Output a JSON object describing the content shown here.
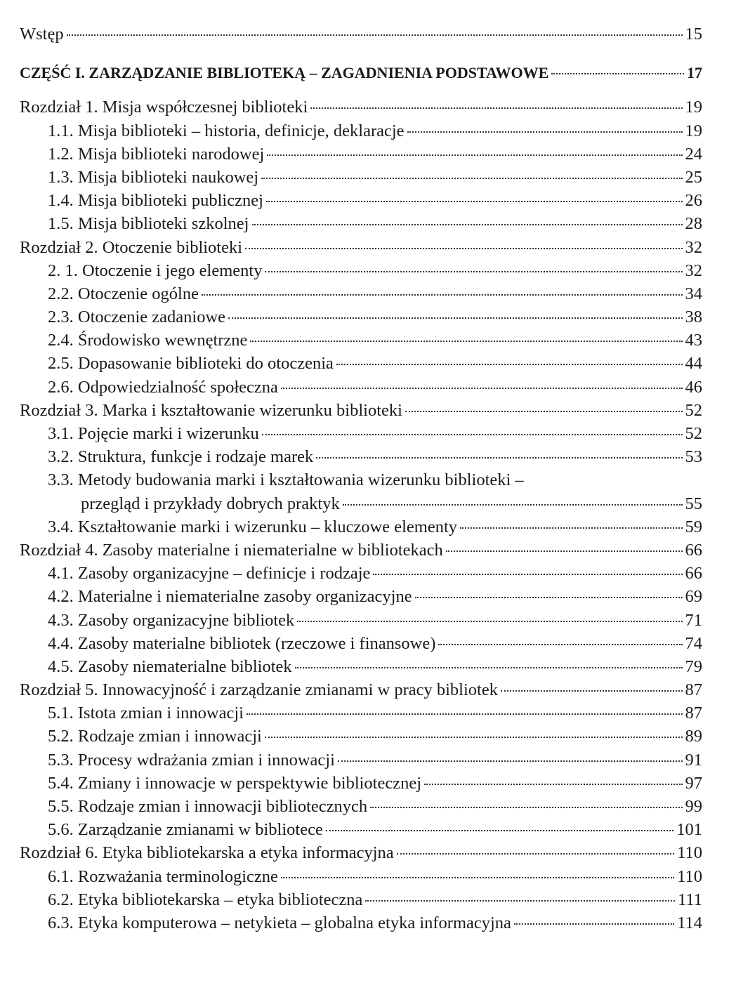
{
  "intro": {
    "title": "Wstęp",
    "page": 15
  },
  "part": {
    "title": "CZĘŚĆ I. ZARZĄDZANIE BIBLIOTEKĄ – ZAGADNIENIA PODSTAWOWE",
    "page": 17
  },
  "chapters": [
    {
      "title": "Rozdział 1. Misja współczesnej biblioteki",
      "page": 19,
      "sections": [
        {
          "title": "1.1. Misja biblioteki – historia, definicje, deklaracje",
          "page": 19
        },
        {
          "title": "1.2. Misja biblioteki narodowej",
          "page": 24
        },
        {
          "title": "1.3. Misja biblioteki naukowej",
          "page": 25
        },
        {
          "title": "1.4. Misja biblioteki publicznej",
          "page": 26
        },
        {
          "title": "1.5. Misja biblioteki szkolnej",
          "page": 28
        }
      ]
    },
    {
      "title": "Rozdział 2. Otoczenie biblioteki",
      "page": 32,
      "sections": [
        {
          "title": "2. 1. Otoczenie i jego elementy",
          "page": 32
        },
        {
          "title": "2.2. Otoczenie ogólne",
          "page": 34
        },
        {
          "title": "2.3. Otoczenie zadaniowe",
          "page": 38
        },
        {
          "title": "2.4. Środowisko wewnętrzne",
          "page": 43
        },
        {
          "title": "2.5. Dopasowanie biblioteki do otoczenia",
          "page": 44
        },
        {
          "title": "2.6. Odpowiedzialność społeczna",
          "page": 46
        }
      ]
    },
    {
      "title": "Rozdział 3. Marka i kształtowanie wizerunku biblioteki",
      "page": 52,
      "sections": [
        {
          "title": "3.1. Pojęcie marki i wizerunku",
          "page": 52
        },
        {
          "title": "3.2. Struktura, funkcje i rodzaje marek",
          "page": 53
        },
        {
          "title": "3.3. Metody budowania marki i kształtowania wizerunku biblioteki –",
          "continuation": "przegląd i przykłady dobrych praktyk",
          "page": 55
        },
        {
          "title": "3.4. Kształtowanie marki i wizerunku – kluczowe elementy",
          "page": 59
        }
      ]
    },
    {
      "title": "Rozdział 4. Zasoby materialne i niematerialne w bibliotekach",
      "page": 66,
      "sections": [
        {
          "title": "4.1. Zasoby organizacyjne – definicje i rodzaje",
          "page": 66
        },
        {
          "title": "4.2. Materialne i niematerialne zasoby organizacyjne",
          "page": 69
        },
        {
          "title": "4.3. Zasoby organizacyjne bibliotek",
          "page": 71
        },
        {
          "title": "4.4. Zasoby materialne bibliotek (rzeczowe i finansowe)",
          "page": 74
        },
        {
          "title": "4.5. Zasoby niematerialne bibliotek",
          "page": 79
        }
      ]
    },
    {
      "title": "Rozdział 5. Innowacyjność i zarządzanie zmianami w pracy bibliotek",
      "page": 87,
      "sections": [
        {
          "title": "5.1. Istota zmian i innowacji",
          "page": 87
        },
        {
          "title": "5.2. Rodzaje zmian i innowacji",
          "page": 89
        },
        {
          "title": "5.3. Procesy wdrażania zmian i innowacji",
          "page": 91
        },
        {
          "title": "5.4. Zmiany i innowacje w perspektywie bibliotecznej",
          "page": 97
        },
        {
          "title": "5.5. Rodzaje zmian i innowacji bibliotecznych",
          "page": 99
        },
        {
          "title": "5.6. Zarządzanie zmianami w bibliotece",
          "page": 101
        }
      ]
    },
    {
      "title": "Rozdział 6. Etyka bibliotekarska a etyka informacyjna",
      "page": 110,
      "sections": [
        {
          "title": "6.1. Rozważania terminologiczne",
          "page": 110
        },
        {
          "title": "6.2. Etyka bibliotekarska – etyka biblioteczna",
          "page": 111
        },
        {
          "title": "6.3. Etyka komputerowa – netykieta – globalna etyka informacyjna",
          "page": 114
        }
      ]
    }
  ]
}
